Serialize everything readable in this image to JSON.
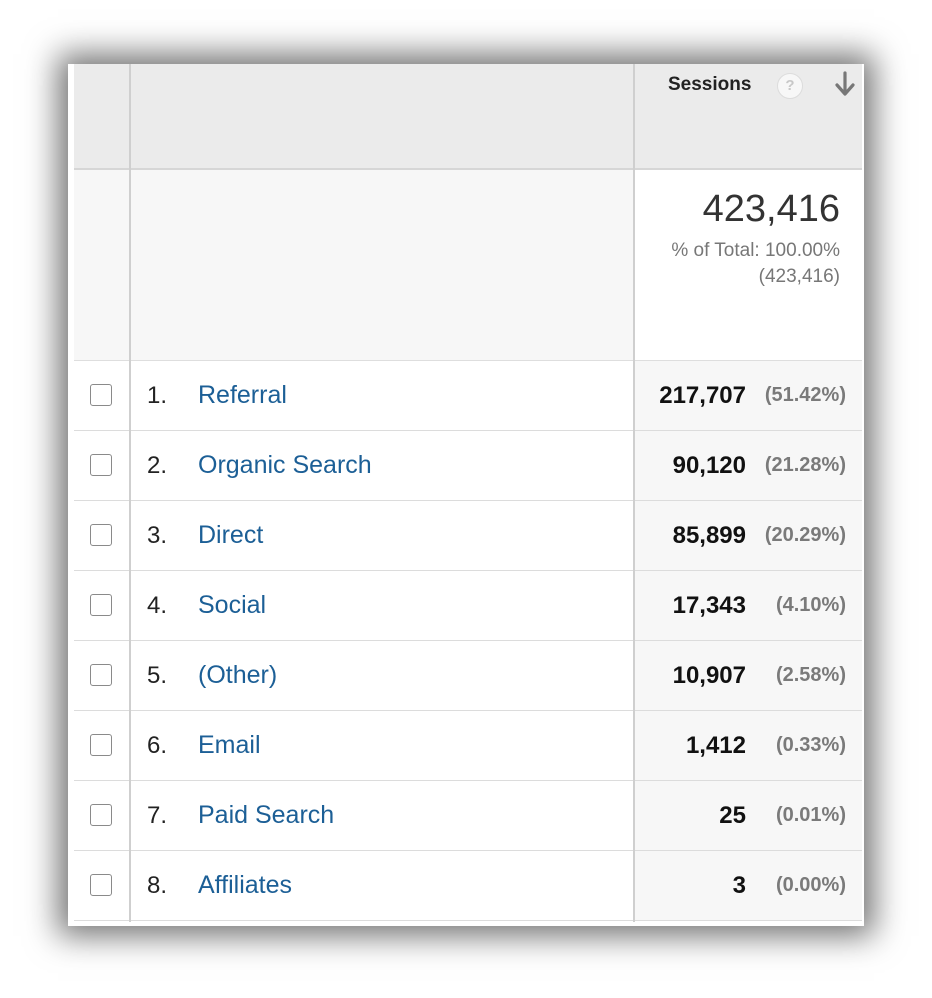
{
  "header": {
    "metric_label": "Sessions",
    "help_icon": "question-circle-icon",
    "sort_icon": "arrow-down-icon"
  },
  "totals": {
    "value": "423,416",
    "percent_of_total": "% of Total: 100.00%",
    "total_abs": "(423,416)"
  },
  "rows": [
    {
      "rank": "1.",
      "label": "Referral",
      "sessions": "217,707",
      "pct": "(51.42%)"
    },
    {
      "rank": "2.",
      "label": "Organic Search",
      "sessions": "90,120",
      "pct": "(21.28%)"
    },
    {
      "rank": "3.",
      "label": "Direct",
      "sessions": "85,899",
      "pct": "(20.29%)"
    },
    {
      "rank": "4.",
      "label": "Social",
      "sessions": "17,343",
      "pct": "(4.10%)"
    },
    {
      "rank": "5.",
      "label": "(Other)",
      "sessions": "10,907",
      "pct": "(2.58%)"
    },
    {
      "rank": "6.",
      "label": "Email",
      "sessions": "1,412",
      "pct": "(0.33%)"
    },
    {
      "rank": "7.",
      "label": "Paid Search",
      "sessions": "25",
      "pct": "(0.01%)"
    },
    {
      "rank": "8.",
      "label": "Affiliates",
      "sessions": "3",
      "pct": "(0.00%)"
    }
  ],
  "colors": {
    "link": "#1c5f96",
    "header_bg": "#ebebeb",
    "totals_bg": "#f7f7f7"
  }
}
